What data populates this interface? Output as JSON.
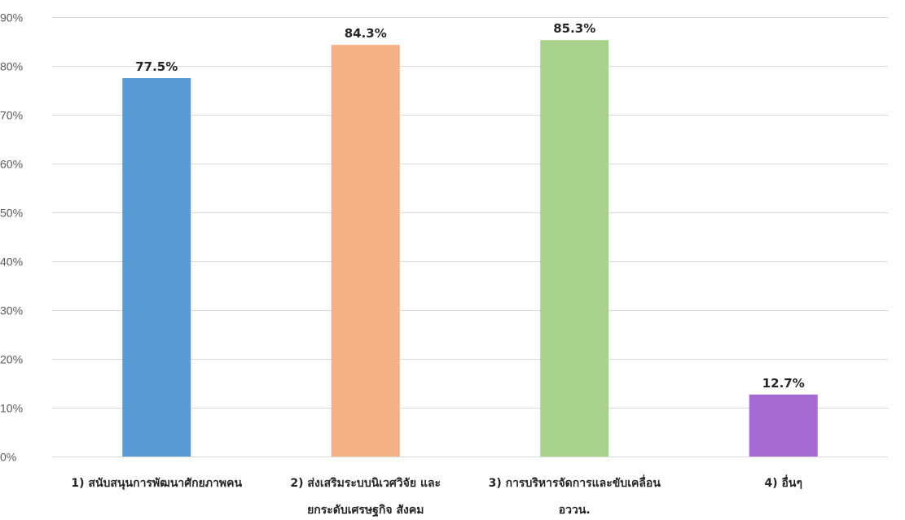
{
  "chart_data": {
    "type": "bar",
    "categories": [
      [
        "1) สนับสนุนการพัฒนาศักยภาพคน"
      ],
      [
        "2) ส่งเสริมระบบนิเวศวิจัย และ",
        "ยกระดับเศรษฐกิจ สังคม"
      ],
      [
        "3) การบริหารจัดการและขับเคลื่อน",
        "อววน."
      ],
      [
        "4) อื่นๆ"
      ]
    ],
    "values": [
      77.5,
      84.3,
      85.3,
      12.7
    ],
    "value_labels": [
      "77.5%",
      "84.3%",
      "85.3%",
      "12.7%"
    ],
    "colors": [
      "#5b9bd5",
      "#f4b183",
      "#a9d18e",
      "#a66bd3"
    ],
    "ylim": [
      0,
      90
    ],
    "y_ticks": [
      "0%",
      "10%",
      "20%",
      "30%",
      "40%",
      "50%",
      "60%",
      "70%",
      "80%",
      "90%"
    ],
    "grid": true,
    "title": "",
    "xlabel": "",
    "ylabel": ""
  }
}
